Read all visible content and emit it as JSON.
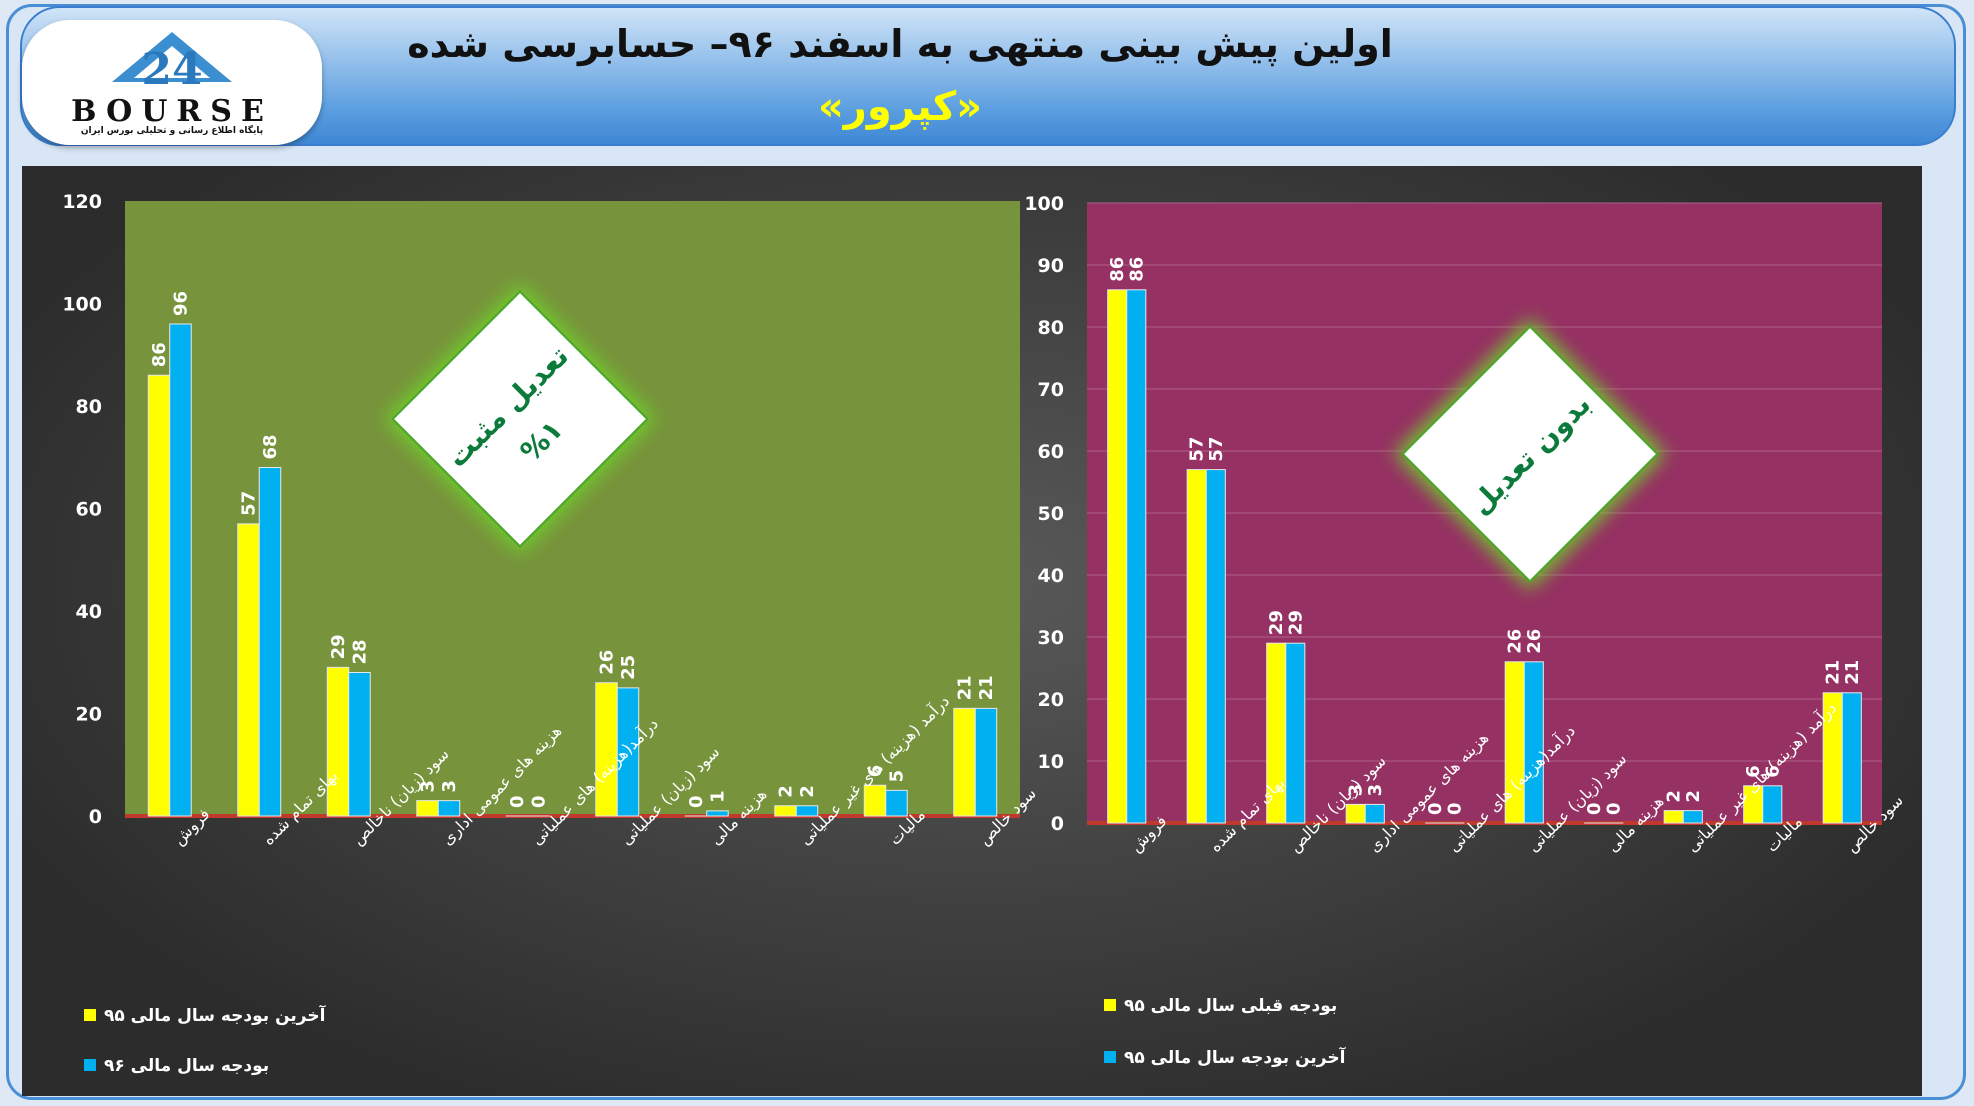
{
  "header": {
    "title": "اولین پیش بینی منتهی به اسفند ۹۶– حسابرسی شده",
    "subtitle": "«کپرور»"
  },
  "logo": {
    "wordmark": "BOURSE",
    "tagline": "پایگاه اطلاع رسانی و تحلیلی بورس ایران"
  },
  "colors": {
    "series_yellow": "#ffff00",
    "series_cyan": "#00b0f0",
    "left_plot_bg": "#77933c",
    "right_plot_bg": "#953163",
    "badge_text": "#0b7a3a"
  },
  "chart_data": [
    {
      "type": "bar",
      "categories": [
        "فروش",
        "بهای تمام شده",
        "سود (زیان) ناخالص",
        "هزینه های عمومی اداری",
        "درآمد(هزینه) های عملیاتی",
        "سود (زیان) عملیاتی",
        "هزینه مالی",
        "درآمد (هزینه) های غیر عملیاتی",
        "مالیات",
        "سود خالص"
      ],
      "series": [
        {
          "name": "آخرین بودجه سال مالی ۹۵",
          "color": "yellow",
          "values": [
            86,
            57,
            29,
            3,
            0,
            26,
            0,
            2,
            6,
            21
          ]
        },
        {
          "name": "بودجه سال مالی ۹۶",
          "color": "cyan",
          "values": [
            96,
            68,
            28,
            3,
            0,
            25,
            1,
            2,
            5,
            21
          ]
        }
      ],
      "ylim": [
        0,
        120
      ],
      "yticks": [
        0,
        20,
        40,
        60,
        80,
        100,
        120
      ],
      "grid": false,
      "legend": "bottom-left",
      "badge": {
        "line1": "تعدیل مثبت",
        "line2": "%۱"
      }
    },
    {
      "type": "bar",
      "categories": [
        "فروش",
        "بهای تمام شده",
        "سود (زیان) ناخالص",
        "هزینه های عمومی اداری",
        "درآمد(هزینه) های عملیاتی",
        "سود (زیان) عملیاتی",
        "هزینه مالی",
        "درآمد (هزینه) های غیر عملیاتی",
        "مالیات",
        "سود خالص"
      ],
      "series": [
        {
          "name": "بودجه قبلی سال مالی ۹۵",
          "color": "yellow",
          "values": [
            86,
            57,
            29,
            3,
            0,
            26,
            0,
            2,
            6,
            21
          ]
        },
        {
          "name": "آخرین بودجه سال مالی ۹۵",
          "color": "cyan",
          "values": [
            86,
            57,
            29,
            3,
            0,
            26,
            0,
            2,
            6,
            21
          ]
        }
      ],
      "ylim": [
        0,
        100
      ],
      "yticks": [
        0,
        10,
        20,
        30,
        40,
        50,
        60,
        70,
        80,
        90,
        100
      ],
      "grid": true,
      "legend": "bottom-left",
      "badge": {
        "line1": "بدون تعدیل"
      }
    }
  ]
}
